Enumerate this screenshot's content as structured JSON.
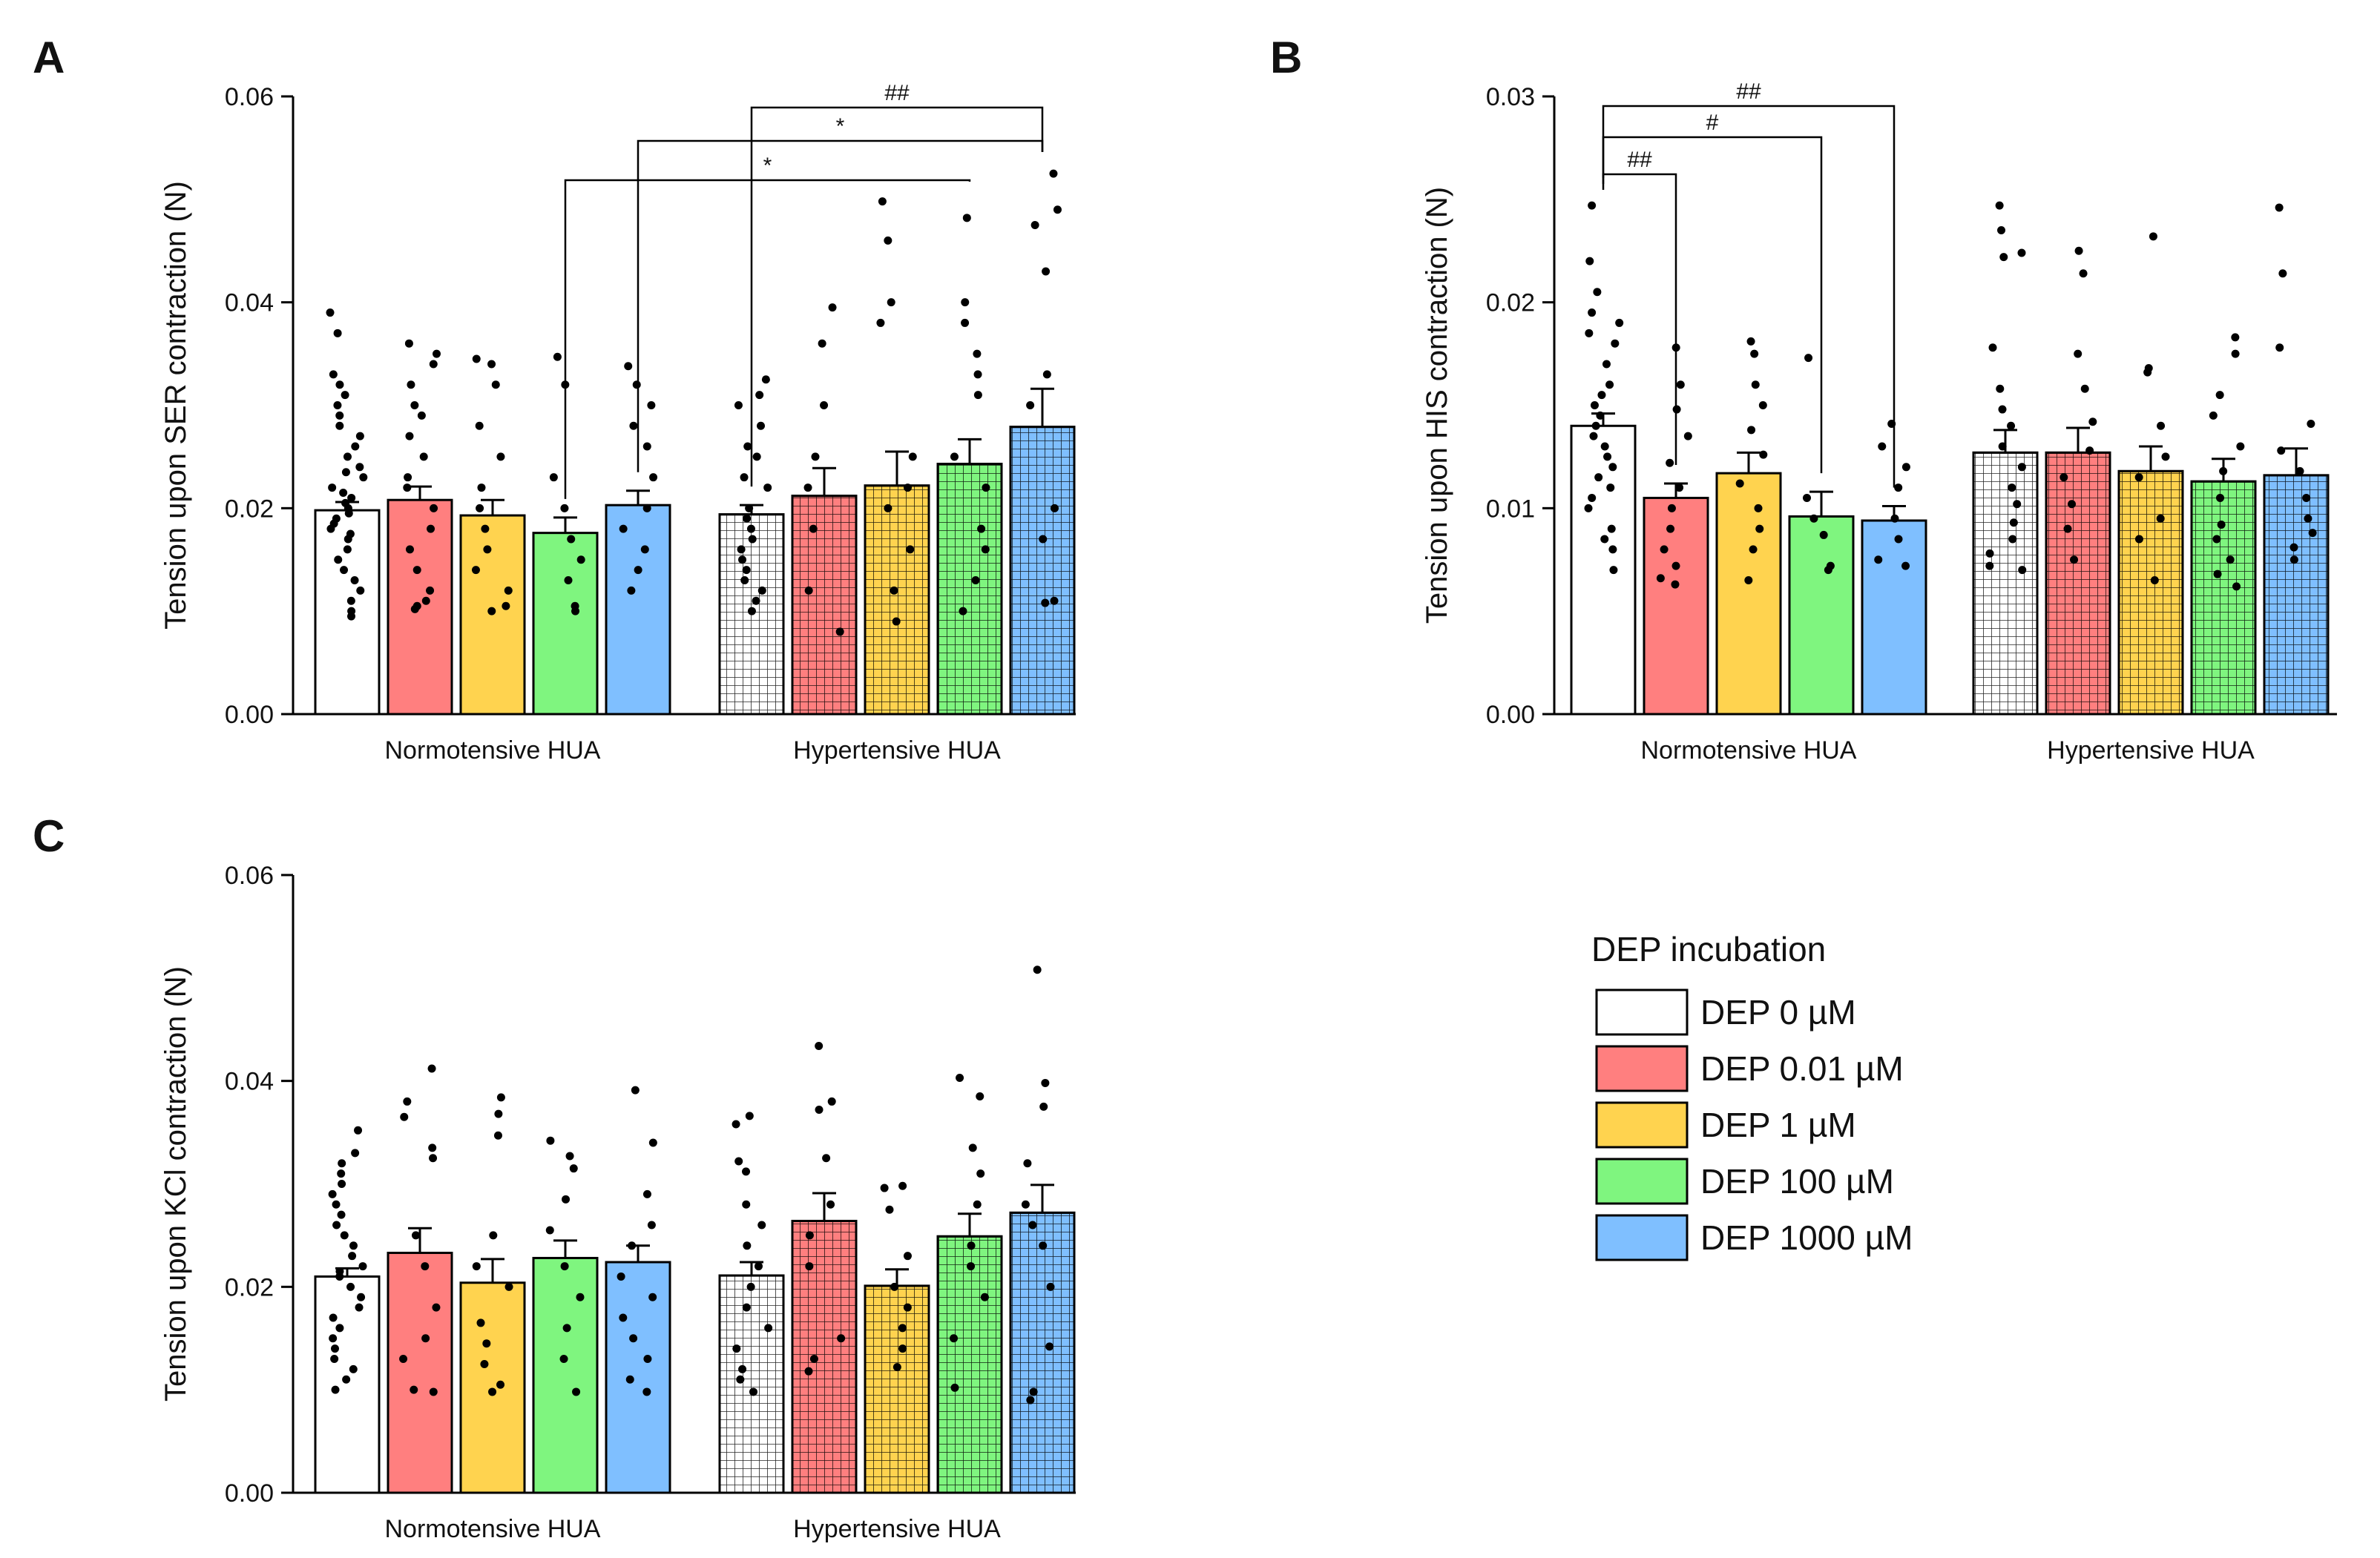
{
  "legend": {
    "title": "DEP incubation",
    "entries": [
      {
        "label": "DEP 0 µM",
        "color": "#ffffff"
      },
      {
        "label": "DEP 0.01 µM",
        "color": "#ff7f7f"
      },
      {
        "label": "DEP 1 µM",
        "color": "#ffd34f"
      },
      {
        "label": "DEP 100 µM",
        "color": "#7ff57f"
      },
      {
        "label": "DEP 1000 µM",
        "color": "#7fbfff"
      }
    ]
  },
  "chart_data": [
    {
      "panel": "A",
      "type": "bar",
      "ylabel": "Tension upon SER contraction (N)",
      "ylim": [
        0,
        0.06
      ],
      "yticks": [
        "0.00",
        "0.02",
        "0.04",
        "0.06"
      ],
      "groups": [
        "Normotensive HUA",
        "Hypertensive HUA"
      ],
      "series": [
        "DEP 0 µM",
        "DEP 0.01 µM",
        "DEP 1 µM",
        "DEP 100 µM",
        "DEP 1000 µM"
      ],
      "means": [
        [
          0.0198,
          0.0208,
          0.0193,
          0.0176,
          0.0203
        ],
        [
          0.0194,
          0.0212,
          0.0222,
          0.0243,
          0.0279
        ]
      ],
      "sem": [
        [
          0.0008,
          0.0013,
          0.0015,
          0.0015,
          0.0014
        ],
        [
          0.0009,
          0.0027,
          0.0033,
          0.0024,
          0.0037
        ]
      ],
      "points": [
        [
          [
            0.039,
            0.037,
            0.033,
            0.032,
            0.031,
            0.03,
            0.029,
            0.028,
            0.027,
            0.026,
            0.025,
            0.024,
            0.0235,
            0.023,
            0.022,
            0.0215,
            0.021,
            0.0205,
            0.02,
            0.0195,
            0.019,
            0.0185,
            0.018,
            0.0175,
            0.017,
            0.016,
            0.015,
            0.014,
            0.013,
            0.012,
            0.011,
            0.01,
            0.0095
          ],
          [
            0.036,
            0.035,
            0.034,
            0.032,
            0.03,
            0.029,
            0.027,
            0.025,
            0.023,
            0.022,
            0.02,
            0.018,
            0.016,
            0.014,
            0.012,
            0.011,
            0.0105,
            0.0102
          ],
          [
            0.0345,
            0.034,
            0.032,
            0.028,
            0.025,
            0.022,
            0.02,
            0.018,
            0.016,
            0.014,
            0.012,
            0.0105,
            0.01
          ],
          [
            0.0347,
            0.032,
            0.023,
            0.02,
            0.017,
            0.015,
            0.013,
            0.0105,
            0.01
          ],
          [
            0.0338,
            0.032,
            0.03,
            0.028,
            0.026,
            0.023,
            0.02,
            0.018,
            0.016,
            0.014,
            0.012
          ]
        ],
        [
          [
            0.0325,
            0.031,
            0.03,
            0.028,
            0.026,
            0.025,
            0.023,
            0.022,
            0.02,
            0.019,
            0.018,
            0.017,
            0.016,
            0.015,
            0.014,
            0.013,
            0.012,
            0.011,
            0.01
          ],
          [
            0.0395,
            0.036,
            0.03,
            0.025,
            0.022,
            0.018,
            0.012,
            0.008
          ],
          [
            0.0498,
            0.046,
            0.04,
            0.038,
            0.025,
            0.022,
            0.02,
            0.016,
            0.012,
            0.009
          ],
          [
            0.0482,
            0.04,
            0.038,
            0.035,
            0.033,
            0.031,
            0.025,
            0.022,
            0.018,
            0.016,
            0.013,
            0.01
          ],
          [
            0.0525,
            0.049,
            0.0475,
            0.043,
            0.033,
            0.03,
            0.02,
            0.017,
            0.011,
            0.0108
          ]
        ]
      ],
      "brackets": [
        {
          "label": "*",
          "from": [
            0,
            3
          ],
          "to": [
            1,
            3
          ]
        },
        {
          "label": "*",
          "from": [
            0,
            4
          ],
          "to": [
            1,
            4
          ]
        },
        {
          "label": "##",
          "from": [
            1,
            0
          ],
          "to": [
            1,
            4
          ]
        }
      ]
    },
    {
      "panel": "B",
      "type": "bar",
      "ylabel": "Tension upon HIS contraction (N)",
      "ylim": [
        0,
        0.03
      ],
      "yticks": [
        "0.00",
        "0.01",
        "0.02",
        "0.03"
      ],
      "groups": [
        "Normotensive HUA",
        "Hypertensive HUA"
      ],
      "series": [
        "DEP 0 µM",
        "DEP 0.01 µM",
        "DEP 1 µM",
        "DEP 100 µM",
        "DEP 1000 µM"
      ],
      "means": [
        [
          0.014,
          0.0105,
          0.0117,
          0.0096,
          0.0094
        ],
        [
          0.0127,
          0.0127,
          0.0118,
          0.0113,
          0.0116
        ]
      ],
      "sem": [
        [
          0.0006,
          0.0007,
          0.001,
          0.0012,
          0.0007
        ],
        [
          0.0011,
          0.0012,
          0.0012,
          0.0011,
          0.0013
        ]
      ],
      "points": [
        [
          [
            0.0247,
            0.022,
            0.0205,
            0.0195,
            0.019,
            0.0185,
            0.018,
            0.017,
            0.016,
            0.0155,
            0.015,
            0.0145,
            0.014,
            0.0135,
            0.013,
            0.0125,
            0.012,
            0.0115,
            0.011,
            0.0105,
            0.01,
            0.009,
            0.0085,
            0.008,
            0.007
          ],
          [
            0.0178,
            0.016,
            0.0148,
            0.0135,
            0.0122,
            0.011,
            0.01,
            0.009,
            0.008,
            0.0072,
            0.0066,
            0.0063
          ],
          [
            0.0181,
            0.0175,
            0.016,
            0.015,
            0.0138,
            0.0126,
            0.0112,
            0.01,
            0.009,
            0.008,
            0.0065
          ],
          [
            0.0173,
            0.0105,
            0.0095,
            0.0087,
            0.0072,
            0.007
          ],
          [
            0.0141,
            0.013,
            0.012,
            0.011,
            0.0095,
            0.0085,
            0.0075,
            0.0072
          ]
        ],
        [
          [
            0.0247,
            0.0235,
            0.0224,
            0.0222,
            0.0178,
            0.0158,
            0.0148,
            0.014,
            0.013,
            0.012,
            0.011,
            0.0102,
            0.0093,
            0.0085,
            0.0078,
            0.0072,
            0.007
          ],
          [
            0.0225,
            0.0214,
            0.0175,
            0.0158,
            0.0142,
            0.0128,
            0.0115,
            0.0102,
            0.009,
            0.0075
          ],
          [
            0.0232,
            0.0168,
            0.0166,
            0.014,
            0.0125,
            0.0115,
            0.0095,
            0.0085,
            0.0065
          ],
          [
            0.0183,
            0.0175,
            0.0155,
            0.0145,
            0.013,
            0.0118,
            0.0105,
            0.0092,
            0.0085,
            0.0075,
            0.0068,
            0.0062
          ],
          [
            0.0246,
            0.0214,
            0.0178,
            0.0141,
            0.0128,
            0.0118,
            0.0105,
            0.0095,
            0.0088,
            0.0081,
            0.0075
          ]
        ]
      ],
      "brackets": [
        {
          "label": "##",
          "from": [
            0,
            0
          ],
          "to": [
            0,
            1
          ]
        },
        {
          "label": "#",
          "from": [
            0,
            0
          ],
          "to": [
            0,
            3
          ]
        },
        {
          "label": "##",
          "from": [
            0,
            0
          ],
          "to": [
            0,
            4
          ]
        }
      ]
    },
    {
      "panel": "C",
      "type": "bar",
      "ylabel": "Tension upon KCl contraction (N)",
      "ylim": [
        0,
        0.06
      ],
      "yticks": [
        "0.00",
        "0.02",
        "0.04",
        "0.06"
      ],
      "groups": [
        "Normotensive HUA",
        "Hypertensive HUA"
      ],
      "series": [
        "DEP 0 µM",
        "DEP 0.01 µM",
        "DEP 1 µM",
        "DEP 100 µM",
        "DEP 1000 µM"
      ],
      "means": [
        [
          0.021,
          0.0233,
          0.0204,
          0.0228,
          0.0224
        ],
        [
          0.0211,
          0.0264,
          0.0201,
          0.0249,
          0.0272
        ]
      ],
      "sem": [
        [
          0.0008,
          0.0024,
          0.0023,
          0.0017,
          0.0016
        ],
        [
          0.0013,
          0.0027,
          0.0016,
          0.0022,
          0.0027
        ]
      ],
      "points": [
        [
          [
            0.0352,
            0.033,
            0.032,
            0.031,
            0.03,
            0.029,
            0.028,
            0.027,
            0.026,
            0.025,
            0.024,
            0.023,
            0.022,
            0.0215,
            0.021,
            0.02,
            0.019,
            0.018,
            0.017,
            0.016,
            0.015,
            0.014,
            0.013,
            0.012,
            0.011,
            0.01
          ],
          [
            0.0412,
            0.038,
            0.0365,
            0.0335,
            0.0325,
            0.025,
            0.022,
            0.018,
            0.015,
            0.013,
            0.01,
            0.0098
          ],
          [
            0.0384,
            0.0368,
            0.0347,
            0.025,
            0.022,
            0.02,
            0.0165,
            0.0145,
            0.0125,
            0.0105,
            0.0098
          ],
          [
            0.0342,
            0.0327,
            0.0315,
            0.0285,
            0.0255,
            0.022,
            0.019,
            0.016,
            0.013,
            0.0098
          ],
          [
            0.0391,
            0.034,
            0.029,
            0.026,
            0.024,
            0.021,
            0.019,
            0.017,
            0.015,
            0.013,
            0.011,
            0.0098
          ]
        ],
        [
          [
            0.0366,
            0.0358,
            0.0322,
            0.0312,
            0.028,
            0.026,
            0.024,
            0.022,
            0.02,
            0.018,
            0.016,
            0.014,
            0.012,
            0.011,
            0.0098
          ],
          [
            0.0434,
            0.038,
            0.0372,
            0.0325,
            0.028,
            0.025,
            0.022,
            0.015,
            0.013,
            0.0118
          ],
          [
            0.0298,
            0.0296,
            0.0275,
            0.023,
            0.02,
            0.018,
            0.016,
            0.014,
            0.0122
          ],
          [
            0.0403,
            0.0385,
            0.0335,
            0.031,
            0.028,
            0.024,
            0.022,
            0.019,
            0.015,
            0.0102
          ],
          [
            0.0508,
            0.0398,
            0.0375,
            0.032,
            0.028,
            0.026,
            0.024,
            0.02,
            0.0142,
            0.0098,
            0.009
          ]
        ]
      ],
      "brackets": []
    }
  ]
}
